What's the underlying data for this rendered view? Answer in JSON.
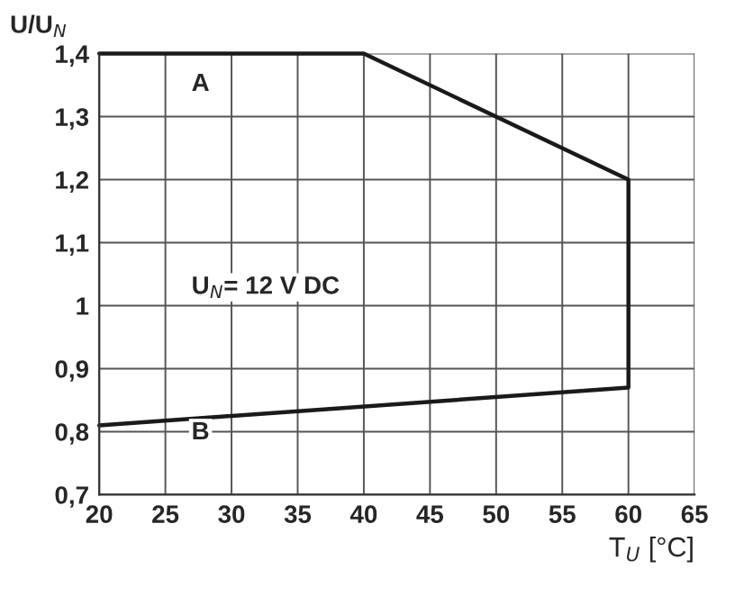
{
  "chart_data": {
    "type": "line",
    "xlabel": "T$_{U}$ [°C]",
    "ylabel": "U/U$_{N}$",
    "x": [
      20,
      40,
      60,
      60,
      20
    ],
    "series": [
      {
        "color": "#1a1a1a",
        "values": [
          1.4,
          1.4,
          1.2,
          0.87,
          0.81
        ]
      }
    ],
    "xlim": [
      20,
      65
    ],
    "xticks": [
      20,
      25,
      30,
      35,
      40,
      45,
      50,
      55,
      60,
      65
    ],
    "ylim": [
      0.7,
      1.4
    ],
    "yticks": [
      {
        "value": 0.7,
        "label": "0,7"
      },
      {
        "value": 0.8,
        "label": "0,8"
      },
      {
        "value": 0.9,
        "label": "0,9"
      },
      {
        "value": 1,
        "label": "1"
      },
      {
        "value": 1.1,
        "label": "1,1"
      },
      {
        "value": 1.2,
        "label": "1,2"
      },
      {
        "value": 1.3,
        "label": "1,3"
      },
      {
        "value": 1.4,
        "label": "1,4"
      }
    ],
    "annotations": [
      "A",
      "B",
      "U$_{N}$= 12 V DC"
    ],
    "grid": true,
    "marker": "none",
    "line_style": "solid"
  }
}
